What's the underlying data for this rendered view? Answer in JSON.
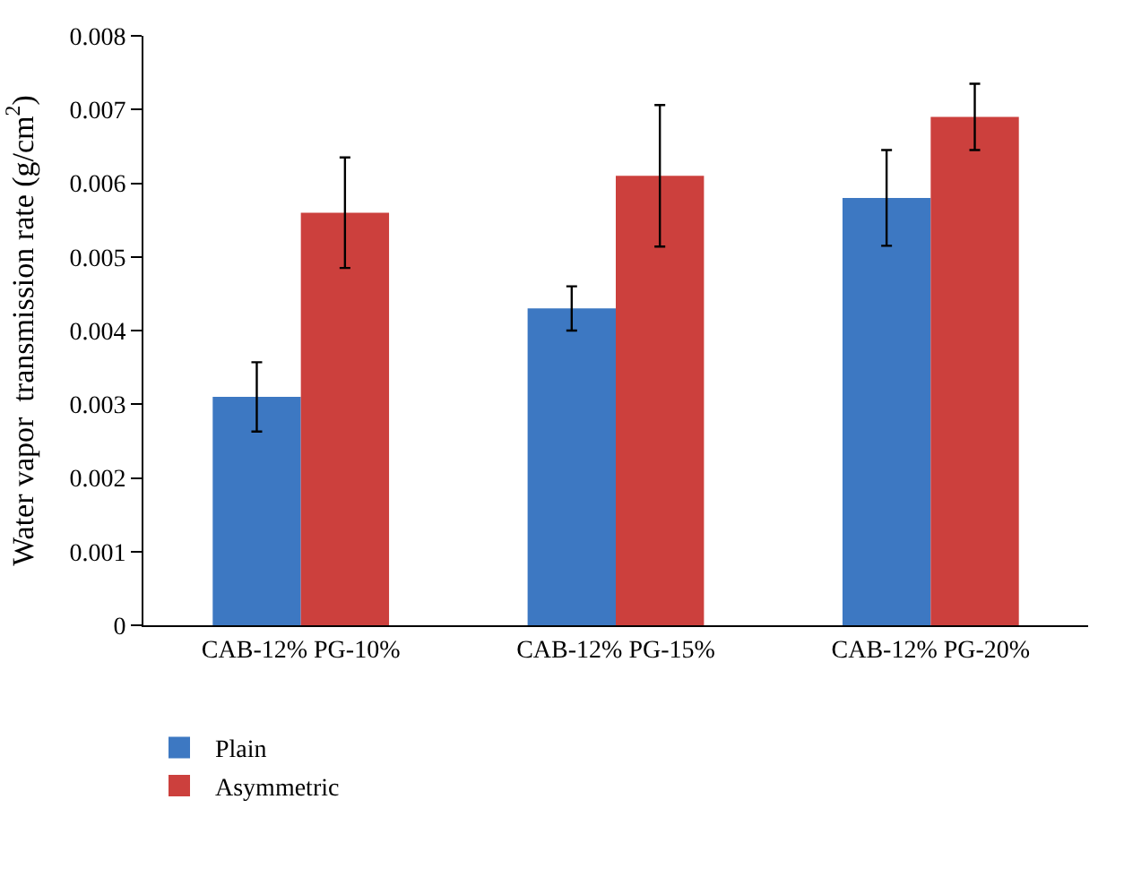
{
  "chart_data": {
    "type": "bar",
    "ylabel": "Water vapor  transmission rate (g/cm$^{2}$)",
    "categories": [
      "CAB-12% PG-10%",
      "CAB-12% PG-15%",
      "CAB-12% PG-20%"
    ],
    "series": [
      {
        "name": "Plain",
        "color": "#3d78c2",
        "values": [
          0.0031,
          0.0043,
          0.0058
        ],
        "errors": [
          0.00047,
          0.0003,
          0.00065
        ]
      },
      {
        "name": "Asymmetric",
        "color": "#cc403d",
        "values": [
          0.0056,
          0.0061,
          0.0069
        ],
        "errors": [
          0.00075,
          0.00096,
          0.00045
        ]
      }
    ],
    "ylim": [
      0,
      0.008
    ],
    "yticks": [
      0,
      0.001,
      0.002,
      0.003,
      0.004,
      0.005,
      0.006,
      0.007,
      0.008
    ],
    "legend": "bottom left"
  }
}
